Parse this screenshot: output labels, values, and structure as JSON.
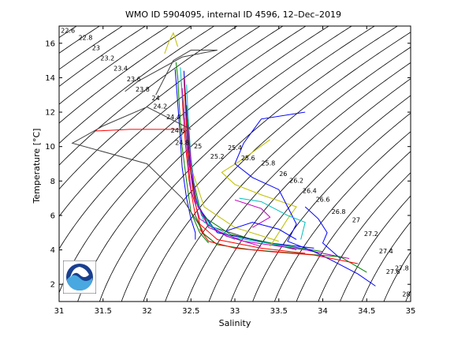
{
  "chart_data": {
    "type": "line",
    "title": "WMO ID 5904095, internal ID 4596, 12–Dec–2019",
    "xlabel": "Salinity",
    "ylabel": "Temperature [°C]",
    "xlim": [
      31,
      35
    ],
    "ylim": [
      1,
      17
    ],
    "xticks": [
      "31",
      "31.5",
      "32",
      "32.5",
      "33",
      "33.5",
      "34",
      "34.5",
      "35"
    ],
    "yticks": [
      "2",
      "4",
      "6",
      "8",
      "10",
      "12",
      "14",
      "16"
    ],
    "xtick_values": [
      31,
      31.5,
      32,
      32.5,
      33,
      33.5,
      34,
      34.5,
      35
    ],
    "ytick_values": [
      2,
      4,
      6,
      8,
      10,
      12,
      14,
      16
    ],
    "grid": false,
    "logo": "noaa-logo",
    "isopycnals": [
      "22.6",
      "22.8",
      "23",
      "23.2",
      "23.4",
      "23.6",
      "23.8",
      "24",
      "24.2",
      "24.4",
      "24.6",
      "24.8",
      "25",
      "25.2",
      "25.4",
      "25.6",
      "25.8",
      "26",
      "26.2",
      "26.4",
      "26.6",
      "26.8",
      "27",
      "27.2",
      "27.4",
      "27.6",
      "27.8",
      "28"
    ],
    "isopycnal_values": [
      22.6,
      22.8,
      23.0,
      23.2,
      23.4,
      23.6,
      23.8,
      24.0,
      24.2,
      24.4,
      24.6,
      24.8,
      25.0,
      25.2,
      25.4,
      25.6,
      25.8,
      26.0,
      26.2,
      26.4,
      26.6,
      26.8,
      27.0,
      27.2,
      27.4,
      27.6,
      27.8,
      28.0
    ],
    "isopycnal_label_positions": [
      {
        "s": 31.1,
        "t": 16.6
      },
      {
        "s": 31.3,
        "t": 16.2
      },
      {
        "s": 31.42,
        "t": 15.6
      },
      {
        "s": 31.55,
        "t": 15.0
      },
      {
        "s": 31.7,
        "t": 14.4
      },
      {
        "s": 31.85,
        "t": 13.8
      },
      {
        "s": 31.95,
        "t": 13.2
      },
      {
        "s": 32.1,
        "t": 12.7
      },
      {
        "s": 32.15,
        "t": 12.2
      },
      {
        "s": 32.3,
        "t": 11.6
      },
      {
        "s": 32.35,
        "t": 10.8
      },
      {
        "s": 32.4,
        "t": 10.1
      },
      {
        "s": 32.58,
        "t": 9.9
      },
      {
        "s": 32.8,
        "t": 9.3
      },
      {
        "s": 33.0,
        "t": 9.8
      },
      {
        "s": 33.15,
        "t": 9.2
      },
      {
        "s": 33.38,
        "t": 8.9
      },
      {
        "s": 33.55,
        "t": 8.3
      },
      {
        "s": 33.7,
        "t": 7.9
      },
      {
        "s": 33.85,
        "t": 7.3
      },
      {
        "s": 34.0,
        "t": 6.8
      },
      {
        "s": 34.18,
        "t": 6.1
      },
      {
        "s": 34.38,
        "t": 5.6
      },
      {
        "s": 34.55,
        "t": 4.8
      },
      {
        "s": 34.72,
        "t": 3.8
      },
      {
        "s": 34.8,
        "t": 2.6
      },
      {
        "s": 34.9,
        "t": 2.8
      },
      {
        "s": 34.95,
        "t": 1.3
      }
    ],
    "series": [
      {
        "color": "#0000ff",
        "points": [
          [
            32.55,
            4.6
          ],
          [
            32.55,
            5.0
          ],
          [
            32.5,
            5.8
          ],
          [
            32.45,
            7.0
          ],
          [
            32.4,
            8.8
          ],
          [
            32.38,
            10.4
          ],
          [
            32.36,
            11.8
          ],
          [
            32.34,
            13.2
          ],
          [
            32.32,
            14.5
          ]
        ]
      },
      {
        "color": "#008000",
        "points": [
          [
            32.7,
            4.4
          ],
          [
            32.6,
            5.0
          ],
          [
            32.5,
            6.2
          ],
          [
            32.45,
            8.0
          ],
          [
            32.4,
            10.0
          ],
          [
            32.37,
            12.2
          ],
          [
            32.35,
            14.0
          ],
          [
            32.33,
            14.9
          ]
        ]
      },
      {
        "color": "#ff0000",
        "points": [
          [
            32.8,
            4.3
          ],
          [
            32.65,
            4.9
          ],
          [
            32.55,
            6.0
          ],
          [
            32.48,
            8.0
          ],
          [
            32.44,
            10.0
          ],
          [
            32.41,
            12.0
          ],
          [
            32.39,
            13.8
          ]
        ]
      },
      {
        "color": "#00bfbf",
        "points": [
          [
            33.0,
            4.6
          ],
          [
            32.75,
            5.2
          ],
          [
            32.55,
            6.8
          ],
          [
            32.48,
            9.0
          ],
          [
            32.44,
            11.0
          ],
          [
            32.4,
            13.0
          ],
          [
            32.38,
            14.6
          ]
        ]
      },
      {
        "color": "#bf00bf",
        "points": [
          [
            33.3,
            4.2
          ],
          [
            32.9,
            4.8
          ],
          [
            32.6,
            5.8
          ],
          [
            32.5,
            7.5
          ],
          [
            32.46,
            9.5
          ],
          [
            32.43,
            11.5
          ],
          [
            32.4,
            13.4
          ]
        ]
      },
      {
        "color": "#bfbf00",
        "points": [
          [
            33.5,
            4.5
          ],
          [
            33.0,
            5.3
          ],
          [
            32.65,
            6.5
          ],
          [
            32.52,
            8.5
          ],
          [
            32.47,
            10.5
          ],
          [
            32.44,
            12.5
          ],
          [
            32.42,
            14.2
          ]
        ]
      },
      {
        "color": "#404040",
        "points": [
          [
            33.7,
            4.0
          ],
          [
            33.2,
            4.6
          ],
          [
            32.7,
            5.4
          ],
          [
            32.55,
            7.0
          ],
          [
            32.48,
            9.0
          ],
          [
            32.45,
            11.2
          ],
          [
            32.43,
            13.0
          ]
        ]
      },
      {
        "color": "#0000ff",
        "points": [
          [
            33.9,
            4.1
          ],
          [
            33.4,
            4.4
          ],
          [
            32.8,
            5.0
          ],
          [
            32.58,
            6.5
          ],
          [
            32.5,
            8.5
          ],
          [
            32.46,
            10.8
          ],
          [
            32.44,
            12.8
          ],
          [
            32.42,
            14.4
          ]
        ]
      },
      {
        "color": "#008000",
        "points": [
          [
            34.0,
            3.9
          ],
          [
            33.5,
            4.3
          ],
          [
            32.95,
            4.9
          ],
          [
            32.62,
            6.0
          ],
          [
            32.53,
            8.0
          ],
          [
            32.48,
            10.2
          ],
          [
            32.45,
            12.4
          ]
        ]
      },
      {
        "color": "#ff0000",
        "points": [
          [
            33.8,
            3.8
          ],
          [
            33.3,
            4.1
          ],
          [
            32.8,
            4.6
          ],
          [
            32.6,
            5.5
          ],
          [
            32.52,
            7.5
          ],
          [
            32.47,
            9.8
          ],
          [
            32.44,
            12.0
          ],
          [
            32.42,
            14.0
          ]
        ]
      },
      {
        "color": "#00bfbf",
        "points": [
          [
            34.1,
            3.7
          ],
          [
            33.6,
            4.2
          ],
          [
            33.0,
            4.7
          ],
          [
            32.65,
            5.6
          ],
          [
            32.55,
            7.2
          ],
          [
            32.5,
            9.4
          ],
          [
            32.47,
            11.6
          ],
          [
            32.45,
            13.6
          ]
        ]
      },
      {
        "color": "#bf00bf",
        "points": [
          [
            34.3,
            3.5
          ],
          [
            33.8,
            4.0
          ],
          [
            33.1,
            4.5
          ],
          [
            32.7,
            5.3
          ],
          [
            32.56,
            6.8
          ],
          [
            32.5,
            9.0
          ],
          [
            32.47,
            11.2
          ]
        ]
      },
      {
        "color": "#bfbf00",
        "points": [
          [
            33.4,
            4.2
          ],
          [
            33.6,
            5.8
          ],
          [
            33.7,
            6.5
          ],
          [
            33.3,
            7.2
          ],
          [
            33.0,
            7.8
          ],
          [
            32.85,
            8.5
          ],
          [
            33.1,
            9.3
          ],
          [
            33.4,
            10.4
          ]
        ]
      },
      {
        "color": "#0000ff",
        "points": [
          [
            34.6,
            1.9
          ],
          [
            34.4,
            2.6
          ],
          [
            34.1,
            3.4
          ],
          [
            33.9,
            3.9
          ],
          [
            33.6,
            4.5
          ],
          [
            33.7,
            5.5
          ],
          [
            33.6,
            6.5
          ],
          [
            33.5,
            7.5
          ],
          [
            33.2,
            8.2
          ],
          [
            33.0,
            9.0
          ],
          [
            33.1,
            10.2
          ],
          [
            33.3,
            11.6
          ],
          [
            33.8,
            12.0
          ]
        ]
      },
      {
        "color": "#0000ff",
        "points": [
          [
            34.2,
            3.5
          ],
          [
            34.0,
            4.4
          ],
          [
            34.05,
            5.0
          ],
          [
            33.95,
            5.8
          ],
          [
            33.8,
            6.5
          ]
        ]
      },
      {
        "color": "#ff0000",
        "points": [
          [
            32.4,
            11.0
          ],
          [
            31.8,
            11.0
          ],
          [
            31.4,
            10.9
          ]
        ]
      },
      {
        "color": "#404040",
        "points": [
          [
            32.5,
            11.0
          ],
          [
            32.0,
            12.3
          ],
          [
            31.5,
            11.2
          ],
          [
            31.15,
            10.2
          ],
          [
            32.0,
            9.0
          ],
          [
            32.4,
            7.0
          ],
          [
            32.6,
            5.4
          ]
        ]
      },
      {
        "color": "#404040",
        "points": [
          [
            32.1,
            13.0
          ],
          [
            32.3,
            15.0
          ],
          [
            32.5,
            15.6
          ],
          [
            32.8,
            15.6
          ],
          [
            32.4,
            15.2
          ],
          [
            31.9,
            13.8
          ],
          [
            31.75,
            13.2
          ]
        ]
      },
      {
        "color": "#bfbf00",
        "points": [
          [
            32.2,
            15.4
          ],
          [
            32.25,
            16.1
          ],
          [
            32.3,
            16.6
          ],
          [
            32.35,
            15.8
          ]
        ]
      },
      {
        "color": "#008000",
        "points": [
          [
            34.5,
            2.7
          ],
          [
            34.2,
            3.6
          ],
          [
            33.7,
            3.8
          ],
          [
            33.2,
            4.0
          ],
          [
            32.8,
            4.3
          ],
          [
            32.63,
            5.0
          ],
          [
            32.55,
            6.0
          ]
        ]
      },
      {
        "color": "#ff0000",
        "points": [
          [
            34.4,
            3.2
          ],
          [
            33.9,
            3.7
          ],
          [
            33.4,
            3.9
          ],
          [
            33.0,
            4.1
          ],
          [
            32.7,
            4.5
          ],
          [
            32.6,
            5.2
          ]
        ]
      },
      {
        "color": "#00bfbf",
        "points": [
          [
            33.75,
            4.6
          ],
          [
            33.8,
            5.6
          ],
          [
            33.6,
            6.0
          ],
          [
            33.3,
            6.8
          ],
          [
            33.05,
            7.0
          ]
        ]
      },
      {
        "color": "#bf00bf",
        "points": [
          [
            33.2,
            5.3
          ],
          [
            33.4,
            5.9
          ],
          [
            33.3,
            6.4
          ],
          [
            33.0,
            6.9
          ]
        ]
      },
      {
        "color": "#0000ff",
        "points": [
          [
            32.9,
            5.1
          ],
          [
            33.2,
            5.6
          ],
          [
            33.5,
            5.2
          ],
          [
            33.7,
            4.6
          ]
        ]
      }
    ]
  }
}
